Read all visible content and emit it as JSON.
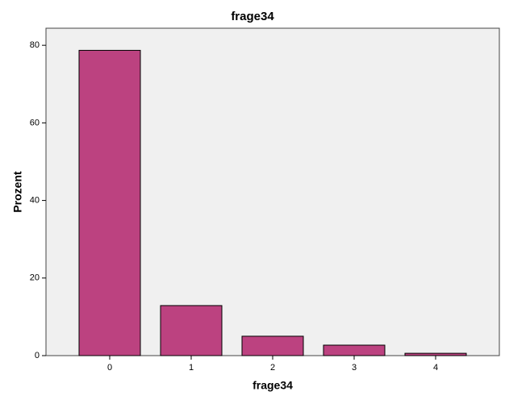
{
  "chart_data": {
    "type": "bar",
    "title": "frage34",
    "x_label": "frage34",
    "y_label": "Prozent",
    "categories": [
      "0",
      "1",
      "2",
      "3",
      "4"
    ],
    "values": [
      78.7,
      12.9,
      5.0,
      2.7,
      0.6
    ],
    "color": "#bc4280",
    "ylim": [
      0,
      84.4
    ],
    "yticks": [
      0,
      20,
      40,
      60,
      80
    ],
    "grid": false
  }
}
